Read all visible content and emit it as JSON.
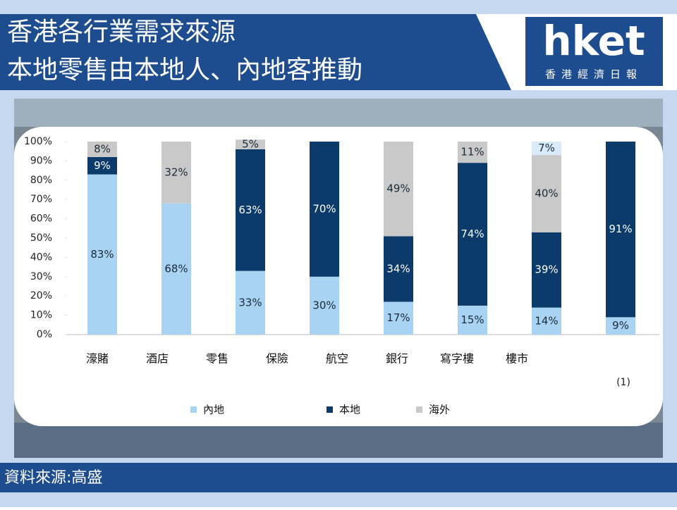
{
  "header": {
    "title_lines": [
      "香港各行業需求來源",
      "本地零售由本地人、內地客推動"
    ],
    "logo": "hket",
    "logo_sub": "香港經濟日報"
  },
  "chart_data": {
    "type": "bar",
    "stacked": true,
    "categories": [
      "濠賭",
      "酒店",
      "零售",
      "保險",
      "航空",
      "銀行",
      "寫字樓",
      "樓市"
    ],
    "series": [
      {
        "name": "內地",
        "color": "#a9d3f2",
        "label_color": "#1a2a3a",
        "values": [
          83,
          68,
          33,
          30,
          17,
          15,
          14,
          9
        ],
        "value_labels": [
          "83%",
          "68%",
          "33%",
          "30%",
          "17%",
          "15%",
          "14%",
          "9%"
        ]
      },
      {
        "name": "本地",
        "color": "#0c3a6a",
        "label_color": "#ffffff",
        "values": [
          9,
          null,
          63,
          70,
          34,
          74,
          39,
          91
        ],
        "value_labels": [
          "9%",
          null,
          "63%",
          "70%",
          "34%",
          "74%",
          "39%",
          "91%"
        ]
      },
      {
        "name": "海外",
        "color": "#c9c9c9",
        "label_color": "#1a2a3a",
        "values": [
          8,
          32,
          5,
          null,
          49,
          11,
          40,
          null
        ],
        "value_labels": [
          "8%",
          "32%",
          "5%",
          null,
          "49%",
          "11%",
          "40%",
          null
        ]
      },
      {
        "color": "#d9ebf9",
        "label_color": "#1a2a3a",
        "values": [
          null,
          null,
          null,
          null,
          null,
          null,
          7,
          null
        ],
        "value_labels": [
          null,
          null,
          null,
          null,
          null,
          null,
          "7%",
          null
        ]
      }
    ],
    "ylim": [
      0,
      100
    ],
    "yticks": [
      {
        "value": 0,
        "label": "0%"
      },
      {
        "value": 10,
        "label": "10%"
      },
      {
        "value": 20,
        "label": "20%"
      },
      {
        "value": 30,
        "label": "30%"
      },
      {
        "value": 40,
        "label": "40%"
      },
      {
        "value": 50,
        "label": "50%"
      },
      {
        "value": 60,
        "label": "60%"
      },
      {
        "value": 70,
        "label": "70%"
      },
      {
        "value": 80,
        "label": "80%"
      },
      {
        "value": 90,
        "label": "90%"
      },
      {
        "value": 100,
        "label": "100%"
      }
    ],
    "note": "(1)"
  },
  "source": "資料來源:高盛"
}
